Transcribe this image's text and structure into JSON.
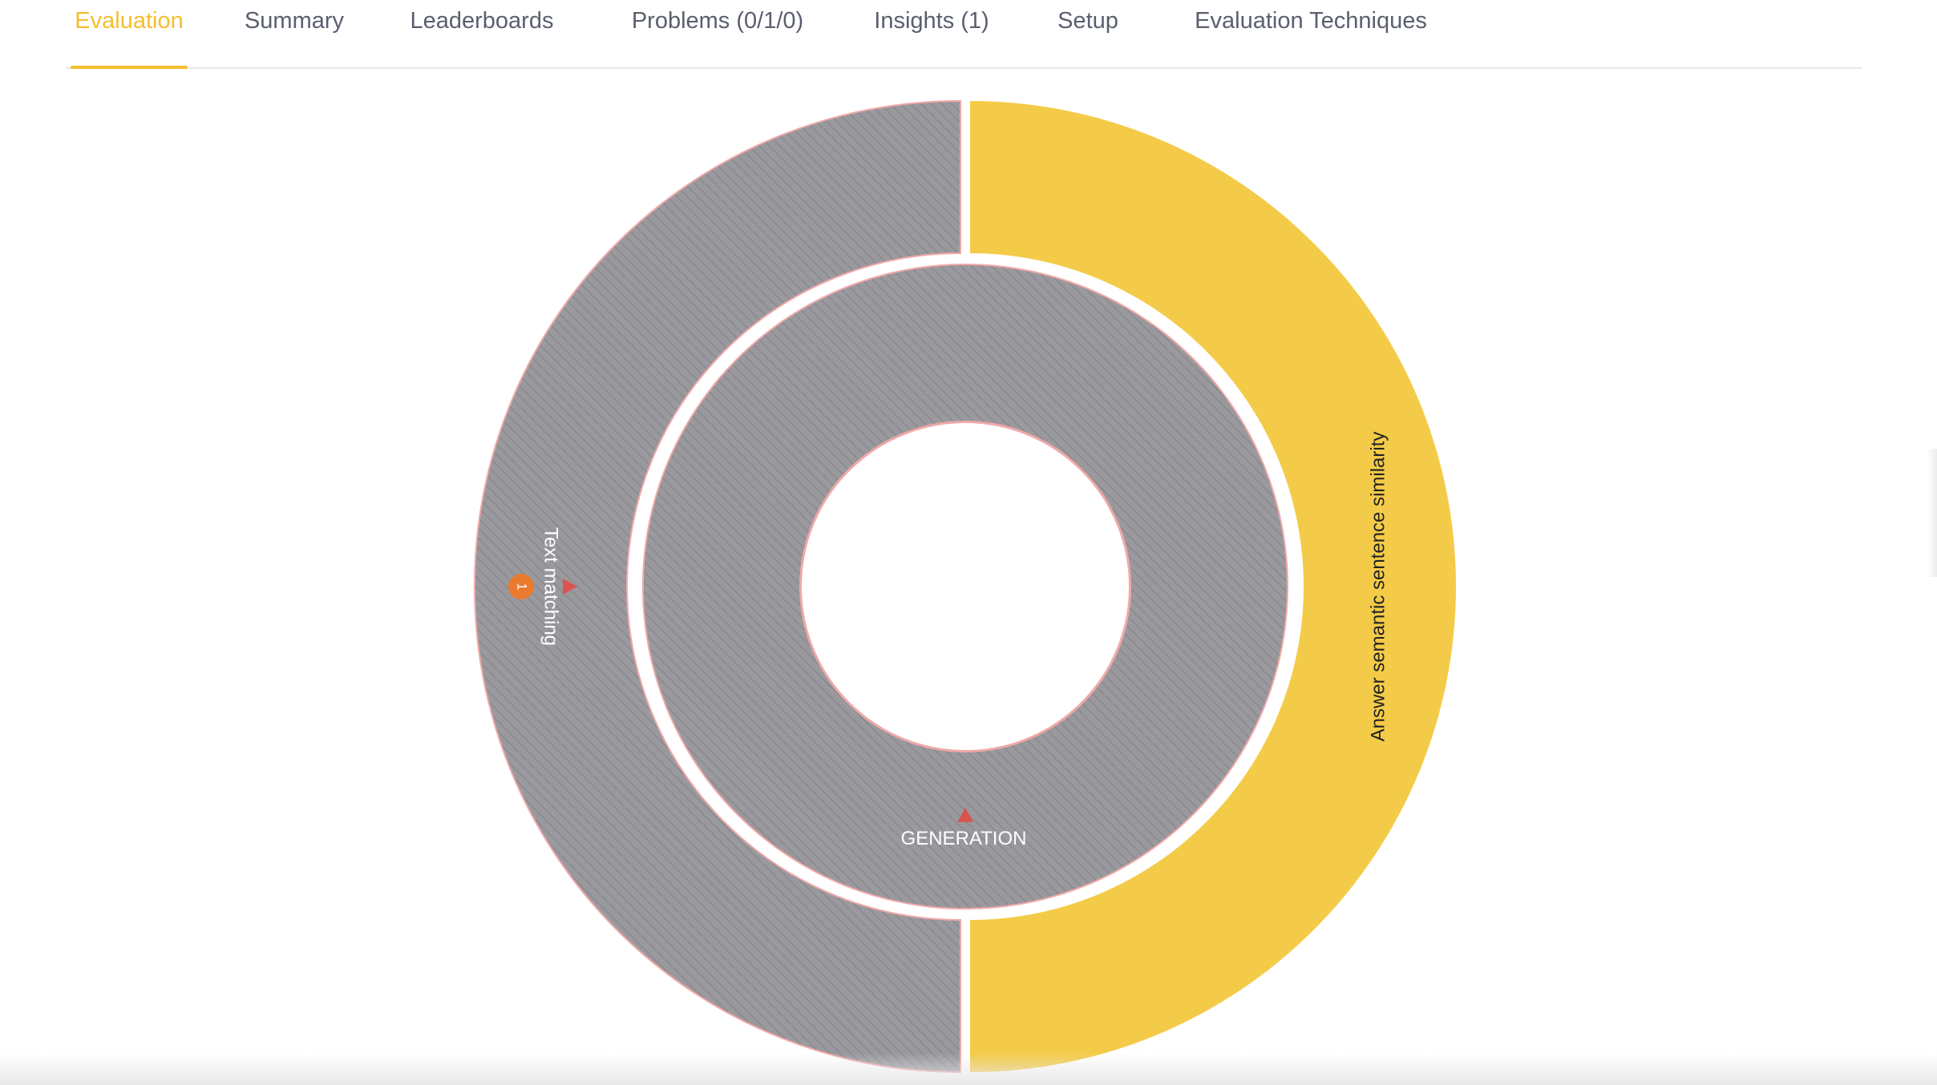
{
  "tabs": [
    {
      "label": "Evaluation",
      "active": true
    },
    {
      "label": "Summary",
      "active": false
    },
    {
      "label": "Leaderboards",
      "active": false
    },
    {
      "label": "Problems (0/1/0)",
      "active": false
    },
    {
      "label": "Insights (1)",
      "active": false
    },
    {
      "label": "Setup",
      "active": false
    },
    {
      "label": "Evaluation Techniques",
      "active": false
    }
  ],
  "sunburst": {
    "inner_ring_label": "GENERATION",
    "outer_left_label": "Text matching",
    "outer_left_badge": "1",
    "outer_right_label": "Answer semantic sentence similarity"
  },
  "colors": {
    "accent": "#f5be2e",
    "hatched_fill": "#9a999e",
    "yellow_segment": "#f4cb48",
    "warning": "#d9534f",
    "badge": "#ea7a2e",
    "segment_border": "#f0a8a8"
  }
}
